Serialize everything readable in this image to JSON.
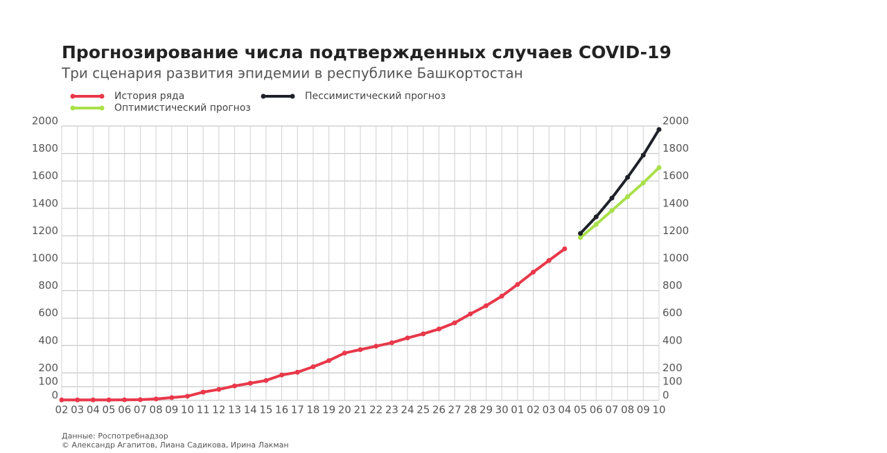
{
  "chart_data": {
    "type": "line",
    "title": "Прогнозирование числа подтвержденных случаев COVID-19",
    "subtitle": "Три сценария развития эпидемии в республике Башкортостан",
    "categories": [
      "02",
      "03",
      "04",
      "05",
      "06",
      "07",
      "08",
      "09",
      "10",
      "11",
      "12",
      "13",
      "14",
      "15",
      "16",
      "17",
      "18",
      "19",
      "20",
      "21",
      "22",
      "23",
      "24",
      "25",
      "26",
      "27",
      "28",
      "29",
      "30",
      "01",
      "02",
      "03",
      "04",
      "05",
      "06",
      "07",
      "08",
      "09",
      "10"
    ],
    "series": [
      {
        "name": "История ряда",
        "color": "#e8384a",
        "values": [
          3,
          3,
          3,
          3,
          4,
          5,
          10,
          20,
          30,
          60,
          80,
          105,
          125,
          145,
          185,
          205,
          245,
          290,
          345,
          370,
          395,
          420,
          455,
          485,
          520,
          565,
          630,
          690,
          760,
          845,
          935,
          1020,
          1105,
          null,
          null,
          null,
          null,
          null,
          null
        ]
      },
      {
        "name": "Оптимистический прогноз",
        "color": "#a8e04a",
        "values": [
          null,
          null,
          null,
          null,
          null,
          null,
          null,
          null,
          null,
          null,
          null,
          null,
          null,
          null,
          null,
          null,
          null,
          null,
          null,
          null,
          null,
          null,
          null,
          null,
          null,
          null,
          null,
          null,
          null,
          null,
          null,
          null,
          null,
          1187,
          1283,
          1384,
          1485,
          1586,
          1697
        ]
      },
      {
        "name": "Пессимистический прогноз",
        "color": "#1e2128",
        "values": [
          null,
          null,
          null,
          null,
          null,
          null,
          null,
          null,
          null,
          null,
          null,
          null,
          null,
          null,
          null,
          null,
          null,
          null,
          null,
          null,
          null,
          null,
          null,
          null,
          null,
          null,
          null,
          null,
          null,
          null,
          null,
          null,
          null,
          1217,
          1338,
          1475,
          1626,
          1788,
          1975
        ]
      }
    ],
    "ylim": [
      0,
      2000
    ],
    "yticks": [
      0,
      100,
      200,
      400,
      600,
      800,
      1000,
      1200,
      1400,
      1600,
      1800,
      2000
    ],
    "y2lim": [
      0,
      2000
    ],
    "y2ticks": [
      0,
      100,
      200,
      400,
      600,
      800,
      1000,
      1200,
      1400,
      1600,
      1800,
      2000
    ],
    "grid": true,
    "source": "Данные: Роспотребнадзор",
    "credits": "© Александр Агапитов, Лиана Садикова, Ирина Лакман"
  }
}
